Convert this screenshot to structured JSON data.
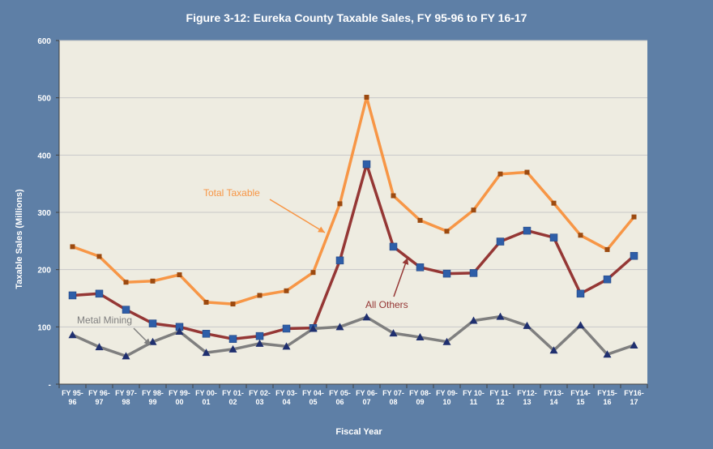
{
  "chart_data": {
    "type": "line",
    "title": "Figure 3-12: Eureka County Taxable Sales, FY 95-96 to FY 16-17",
    "xlabel": "Fiscal Year",
    "ylabel": "Taxable Sales (Millions)",
    "ylim": [
      0,
      600
    ],
    "yticks": [
      0,
      100,
      200,
      300,
      400,
      500,
      600
    ],
    "ytick_labels": [
      "-",
      "100",
      "200",
      "300",
      "400",
      "500",
      "600"
    ],
    "grid": true,
    "legend": "none (inline annotations)",
    "categories": [
      [
        "FY 95-",
        "96"
      ],
      [
        "FY 96-",
        "97"
      ],
      [
        "FY 97-",
        "98"
      ],
      [
        "FY 98-",
        "99"
      ],
      [
        "FY 99-",
        "00"
      ],
      [
        "FY 00-",
        "01"
      ],
      [
        "FY 01-",
        "02"
      ],
      [
        "FY 02-",
        "03"
      ],
      [
        "FY 03-",
        "04"
      ],
      [
        "FY 04-",
        "05"
      ],
      [
        "FY 05-",
        "06"
      ],
      [
        "FY 06-",
        "07"
      ],
      [
        "FY 07-",
        "08"
      ],
      [
        "FY 08-",
        "09"
      ],
      [
        "FY 09-",
        "10"
      ],
      [
        "FY 10-",
        "11"
      ],
      [
        "FY 11-",
        "12"
      ],
      [
        "FY12-",
        "13"
      ],
      [
        "FY13-",
        "14"
      ],
      [
        "FY14-",
        "15"
      ],
      [
        "FY15-",
        "16"
      ],
      [
        "FY16-",
        "17"
      ]
    ],
    "series": [
      {
        "name": "Total Taxable",
        "color": "#f79646",
        "marker": "square-small",
        "marker_color": "#9c4a10",
        "values": [
          240,
          223,
          178,
          180,
          191,
          143,
          140,
          155,
          163,
          195,
          315,
          501,
          329,
          286,
          267,
          304,
          367,
          370,
          316,
          260,
          235,
          292
        ]
      },
      {
        "name": "All Others",
        "color": "#953735",
        "marker": "square",
        "marker_color": "#2e5ea8",
        "values": [
          155,
          158,
          130,
          106,
          100,
          88,
          79,
          84,
          97,
          98,
          216,
          384,
          240,
          204,
          193,
          194,
          249,
          268,
          256,
          158,
          183,
          224
        ]
      },
      {
        "name": "Metal Mining",
        "color": "#7f7f7f",
        "marker": "triangle",
        "marker_color": "#1f2f6f",
        "values": [
          86,
          65,
          49,
          74,
          92,
          55,
          61,
          71,
          66,
          97,
          100,
          117,
          89,
          82,
          74,
          111,
          118,
          102,
          59,
          103,
          52,
          68
        ]
      }
    ],
    "annotations": [
      {
        "text": "Total Taxable",
        "color": "#f79646"
      },
      {
        "text": "All Others",
        "color": "#953735"
      },
      {
        "text": "Metal Mining",
        "color": "#7f7f7f"
      }
    ]
  }
}
